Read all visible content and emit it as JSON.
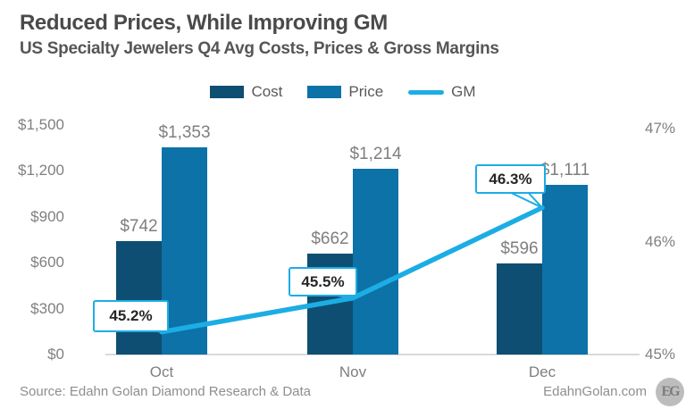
{
  "header": {
    "title": "Reduced Prices, While Improving GM",
    "subtitle": "US Specialty Jewelers Q4 Avg Costs, Prices & Gross Margins"
  },
  "legend": {
    "items": [
      {
        "name": "cost",
        "label": "Cost"
      },
      {
        "name": "price",
        "label": "Price"
      },
      {
        "name": "gm",
        "label": "GM"
      }
    ]
  },
  "footer": {
    "source": "Source: Edahn Golan Diamond Research & Data",
    "site": "EdahnGolan.com",
    "logo": "EG"
  },
  "chart_data": {
    "type": "combo",
    "title": "Reduced Prices, While Improving GM",
    "subtitle": "US Specialty Jewelers Q4 Avg Costs, Prices & Gross Margins",
    "categories": [
      "Oct",
      "Nov",
      "Dec"
    ],
    "series": [
      {
        "name": "Cost",
        "type": "bar",
        "axis": "left",
        "values": [
          742,
          662,
          596
        ],
        "labels": [
          "$742",
          "$662",
          "$596"
        ],
        "color": "#0E4E72"
      },
      {
        "name": "Price",
        "type": "bar",
        "axis": "left",
        "values": [
          1353,
          1214,
          1111
        ],
        "labels": [
          "$1,353",
          "$1,214",
          "$1,111"
        ],
        "color": "#0C72A7"
      },
      {
        "name": "GM",
        "type": "line",
        "axis": "right",
        "values": [
          45.2,
          45.5,
          46.3
        ],
        "labels": [
          "45.2%",
          "45.5%",
          "46.3%"
        ],
        "color": "#1CADE4"
      }
    ],
    "left_axis": {
      "range": [
        0,
        1500
      ],
      "ticks": [
        {
          "label": "$0",
          "value": 0
        },
        {
          "label": "$300",
          "value": 300
        },
        {
          "label": "$600",
          "value": 600
        },
        {
          "label": "$900",
          "value": 900
        },
        {
          "label": "$1,200",
          "value": 1200
        },
        {
          "label": "$1,500",
          "value": 1500
        }
      ]
    },
    "right_axis": {
      "range": [
        45,
        47
      ],
      "ticks": [
        {
          "label": "45%",
          "value": 45
        },
        {
          "label": "46%",
          "value": 46
        },
        {
          "label": "47%",
          "value": 47
        }
      ]
    },
    "grid": false,
    "legend_position": "top"
  }
}
